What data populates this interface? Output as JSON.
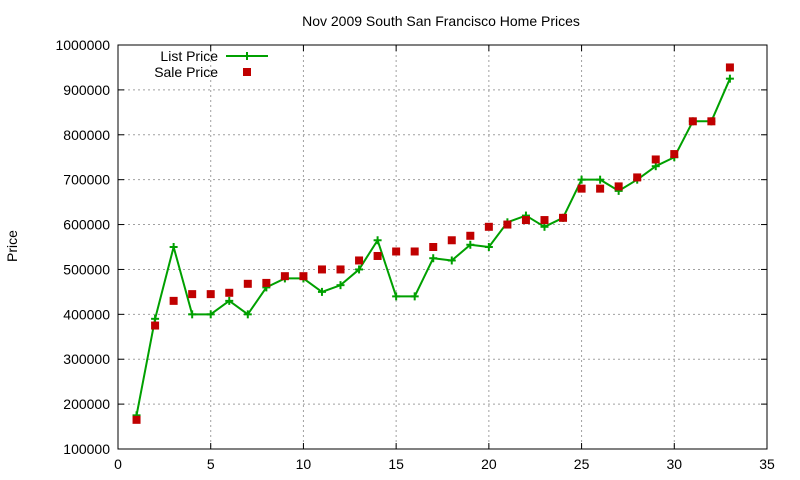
{
  "chart_data": {
    "type": "line",
    "title": "Nov 2009 South San Francisco Home Prices",
    "xlabel": "",
    "ylabel": "Price",
    "xlim": [
      0,
      35
    ],
    "ylim": [
      100000,
      1000000
    ],
    "x_ticks": [
      "0",
      "5",
      "10",
      "15",
      "20",
      "25",
      "30",
      "35"
    ],
    "y_ticks": [
      "100000",
      "200000",
      "300000",
      "400000",
      "500000",
      "600000",
      "700000",
      "800000",
      "900000",
      "1000000"
    ],
    "grid": true,
    "legend_position": "top-left",
    "series": [
      {
        "name": "List Price",
        "style": "line-with-plus-markers",
        "color": "#00a000",
        "x": [
          1,
          2,
          3,
          4,
          5,
          6,
          7,
          8,
          9,
          10,
          11,
          12,
          13,
          14,
          15,
          16,
          17,
          18,
          19,
          20,
          21,
          22,
          23,
          24,
          25,
          26,
          27,
          28,
          29,
          30,
          31,
          32,
          33
        ],
        "values": [
          175000,
          390000,
          550000,
          400000,
          400000,
          430000,
          400000,
          460000,
          480000,
          480000,
          450000,
          465000,
          500000,
          565000,
          440000,
          440000,
          525000,
          520000,
          555000,
          550000,
          605000,
          620000,
          595000,
          615000,
          700000,
          700000,
          675000,
          700000,
          730000,
          750000,
          830000,
          830000,
          925000
        ]
      },
      {
        "name": "Sale Price",
        "style": "square-markers",
        "color": "#c00000",
        "x": [
          1,
          2,
          3,
          4,
          5,
          6,
          7,
          8,
          9,
          10,
          11,
          12,
          13,
          14,
          15,
          16,
          17,
          18,
          19,
          20,
          21,
          22,
          23,
          24,
          25,
          26,
          27,
          28,
          29,
          30,
          31,
          32,
          33
        ],
        "values": [
          165000,
          375000,
          430000,
          445000,
          445000,
          448000,
          468000,
          470000,
          485000,
          485000,
          500000,
          500000,
          520000,
          530000,
          540000,
          540000,
          550000,
          565000,
          575000,
          595000,
          600000,
          610000,
          610000,
          615000,
          680000,
          680000,
          685000,
          705000,
          745000,
          757000,
          830000,
          830000,
          950000
        ]
      }
    ]
  }
}
